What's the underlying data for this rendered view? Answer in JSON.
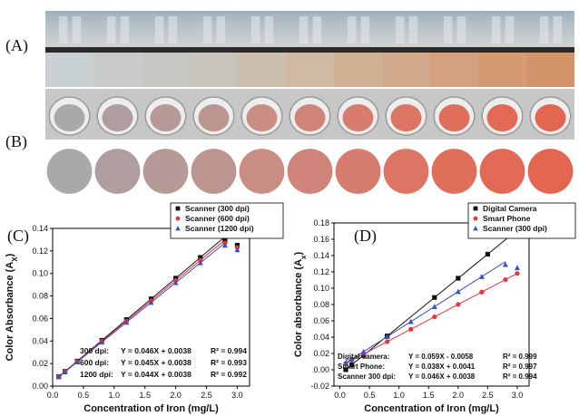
{
  "panels": {
    "a_label": "(A)",
    "b_label": "(B)"
  },
  "samples": {
    "count": 11,
    "colors_A": [
      "#c9d0d2",
      "#c8cbca",
      "#c7c8c4",
      "#c9c4bb",
      "#ccbfae",
      "#cfb9a2",
      "#d0b196",
      "#d2a98a",
      "#d3a17e",
      "#d39a73",
      "#d3946a"
    ],
    "colors_B": [
      "#a9a9a9",
      "#b09d9d",
      "#b59a98",
      "#bd9590",
      "#c98d84",
      "#d08479",
      "#d67d70",
      "#dc7564",
      "#df6e5a",
      "#e26a55",
      "#e36750"
    ]
  },
  "chart_data": [
    {
      "type": "scatter",
      "panel": "(C)",
      "title": "",
      "xlabel": "Concentration of Iron (mg/L)",
      "ylabel": "Color Absorbance (A",
      "ylabel_sub": "X",
      "xlim": [
        0,
        3.2
      ],
      "ylim": [
        0,
        0.14
      ],
      "xticks": [
        "0.0",
        "0.5",
        "1.0",
        "1.5",
        "2.0",
        "2.5",
        "3.0"
      ],
      "yticks": [
        "0.00",
        "0.02",
        "0.04",
        "0.06",
        "0.08",
        "0.10",
        "0.12",
        "0.14"
      ],
      "legend_position": "top-right",
      "series": [
        {
          "name": "Scanner (300 dpi)",
          "marker": "square",
          "color": "#111111",
          "x": [
            0.1,
            0.2,
            0.4,
            0.8,
            1.2,
            1.6,
            2.0,
            2.4,
            2.8,
            3.0
          ],
          "y": [
            0.0084,
            0.013,
            0.0222,
            0.0406,
            0.059,
            0.0774,
            0.0958,
            0.1142,
            0.129,
            0.125
          ],
          "fit": {
            "slope": 0.046,
            "intercept": 0.0038,
            "x": [
              0.1,
              2.8
            ]
          }
        },
        {
          "name": "Scanner (600 dpi)",
          "marker": "circle",
          "color": "#e8343a",
          "x": [
            0.1,
            0.2,
            0.4,
            0.8,
            1.2,
            1.6,
            2.0,
            2.4,
            2.8,
            3.0
          ],
          "y": [
            0.0083,
            0.0128,
            0.0218,
            0.0398,
            0.0578,
            0.0758,
            0.0938,
            0.1118,
            0.127,
            0.123
          ],
          "fit": {
            "slope": 0.045,
            "intercept": 0.0038,
            "x": [
              0.1,
              2.8
            ]
          }
        },
        {
          "name": "Scanner (1200 dpi)",
          "marker": "triangle",
          "color": "#3c52c4",
          "x": [
            0.1,
            0.2,
            0.4,
            0.8,
            1.2,
            1.6,
            2.0,
            2.4,
            2.8,
            3.0
          ],
          "y": [
            0.0082,
            0.0126,
            0.0214,
            0.039,
            0.0566,
            0.0742,
            0.0918,
            0.1094,
            0.125,
            0.121
          ],
          "fit": {
            "slope": 0.044,
            "intercept": 0.0038,
            "x": [
              0.1,
              2.8
            ]
          }
        }
      ],
      "equations": [
        {
          "label": "300 dpi:",
          "eq": "Y = 0.046X + 0.0038",
          "r2": "R² = 0.994"
        },
        {
          "label": "600 dpi:",
          "eq": "Y = 0.045X + 0.0038",
          "r2": "R² = 0.993"
        },
        {
          "label": "1200 dpi:",
          "eq": "Y = 0.044X + 0.0038",
          "r2": "R² = 0.992"
        }
      ]
    },
    {
      "type": "scatter",
      "panel": "(D)",
      "title": "",
      "xlabel": "Concentration of Iron (mg/L)",
      "ylabel": "Color absorbance (A",
      "ylabel_sub": "x",
      "xlim": [
        -0.1,
        3.2
      ],
      "ylim": [
        -0.02,
        0.18
      ],
      "xticks": [
        "0.0",
        "0.5",
        "1.0",
        "1.5",
        "2.0",
        "2.5",
        "3.0"
      ],
      "yticks": [
        "-0.02",
        "0.00",
        "0.02",
        "0.04",
        "0.06",
        "0.08",
        "0.10",
        "0.12",
        "0.14",
        "0.16",
        "0.18"
      ],
      "legend_position": "top-right",
      "series": [
        {
          "name": "Digital Camera",
          "marker": "square",
          "color": "#111111",
          "x": [
            0.1,
            0.2,
            0.4,
            0.8,
            1.6,
            2.0,
            2.5,
            3.0
          ],
          "y": [
            0.0001,
            0.006,
            0.0178,
            0.0414,
            0.0886,
            0.1122,
            0.1417,
            0.1712
          ],
          "fit": {
            "slope": 0.059,
            "intercept": -0.0058,
            "x": [
              0.1,
              3.0
            ]
          }
        },
        {
          "name": "Smart Phone",
          "marker": "circle",
          "color": "#e8343a",
          "x": [
            0.1,
            0.2,
            0.4,
            0.8,
            1.2,
            1.6,
            2.0,
            2.4,
            2.8,
            3.0
          ],
          "y": [
            0.0079,
            0.0117,
            0.0193,
            0.0345,
            0.0497,
            0.0649,
            0.0801,
            0.0953,
            0.1105,
            0.1181
          ],
          "fit": {
            "slope": 0.038,
            "intercept": 0.0041,
            "x": [
              0.1,
              3.0
            ]
          }
        },
        {
          "name": "Scanner (300 dpi)",
          "marker": "triangle",
          "color": "#3c52c4",
          "x": [
            0.1,
            0.2,
            0.4,
            0.8,
            1.2,
            1.6,
            2.0,
            2.4,
            2.8,
            3.0
          ],
          "y": [
            0.0084,
            0.013,
            0.0222,
            0.0406,
            0.059,
            0.0774,
            0.0958,
            0.1142,
            0.129,
            0.125
          ],
          "fit": {
            "slope": 0.046,
            "intercept": 0.0038,
            "x": [
              0.1,
              2.8
            ]
          }
        }
      ],
      "equations": [
        {
          "label": "Digital camera:",
          "eq": "Y = 0.059X - 0.0058",
          "r2": "R² = 0.999"
        },
        {
          "label": "Smart Phone:",
          "eq": "Y = 0.038X + 0.0041",
          "r2": "R² = 0.997"
        },
        {
          "label": "Scanner 300 dpi:",
          "eq": "Y = 0.046X + 0.0038",
          "r2": "R² = 0.994"
        }
      ]
    }
  ]
}
